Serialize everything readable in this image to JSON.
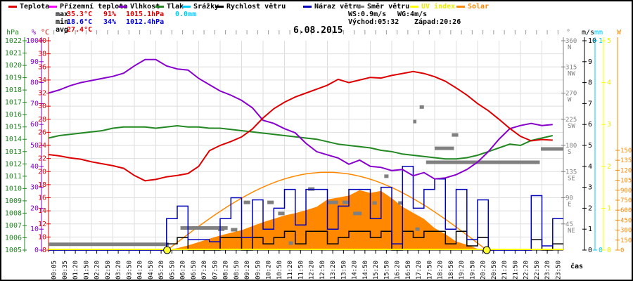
{
  "title": "6.08.2015",
  "legend": {
    "items": [
      {
        "label": "Teplota",
        "color": "#dd0000",
        "label_color": "#000000"
      },
      {
        "label": "Přízemní teplota",
        "color": "#ff00ff",
        "label_color": "#000000"
      },
      {
        "label": "Vlhkost",
        "color": "#8800cc",
        "label_color": "#000000"
      },
      {
        "label": "Tlak",
        "color": "#228822",
        "label_color": "#000000"
      },
      {
        "label": "Srážky",
        "color": "#00ccff",
        "label_color": "#000000"
      },
      {
        "label": "Rychlost větru",
        "color": "#000000",
        "label_color": "#000000"
      },
      {
        "label": "Náraz větru",
        "color": "#0000bb",
        "label_color": "#000000"
      },
      {
        "label": "Směr větru",
        "color": "#808080",
        "label_color": "#000000"
      },
      {
        "label": "UV index",
        "color": "#ffff00",
        "label_color": "#eeee00"
      },
      {
        "label": "Solar",
        "color": "#ff8800",
        "label_color": "#ff8800"
      }
    ]
  },
  "stats": {
    "max_label": "max",
    "max_temp": "35.3°C",
    "max_hum": "91%",
    "max_press": "1015.1hPa",
    "rain": "0.0mm",
    "min_label": "min",
    "min_temp": "18.6°C",
    "min_hum": "34%",
    "min_press": "1012.4hPa",
    "avg_label": "avg",
    "avg_temp": "27.4°C",
    "ws": "WS:0.9m/s",
    "wg": "WG:4m/s",
    "sunrise": "Východ:05:32",
    "sunset": "Západ:20:26"
  },
  "chart_data": {
    "type": "line",
    "title": "6.08.2015",
    "x_unit": "hours",
    "x_start": 0,
    "x_step": 0.5,
    "n_points": 48,
    "time_labels": [
      "00:05",
      "00:35",
      "01:20",
      "01:50",
      "02:20",
      "02:50",
      "03:20",
      "03:50",
      "04:20",
      "04:50",
      "05:20",
      "05:50",
      "06:20",
      "06:50",
      "07:20",
      "07:50",
      "08:20",
      "08:50",
      "09:20",
      "09:50",
      "10:20",
      "10:50",
      "11:20",
      "11:50",
      "12:20",
      "12:50",
      "13:20",
      "13:50",
      "14:20",
      "14:50",
      "15:20",
      "15:50",
      "16:20",
      "16:50",
      "17:20",
      "17:50",
      "18:20",
      "18:50",
      "19:20",
      "19:50",
      "20:20",
      "20:50",
      "21:20",
      "21:50",
      "22:20",
      "22:50",
      "23:20",
      "23:50"
    ],
    "series": [
      {
        "name": "Teplota",
        "unit": "°C",
        "color": "#dd0000",
        "values": [
          22.6,
          22.4,
          22.1,
          21.9,
          21.5,
          21.2,
          20.9,
          20.5,
          19.4,
          18.6,
          18.8,
          19.2,
          19.4,
          19.7,
          20.8,
          23.2,
          24.0,
          24.6,
          25.3,
          26.5,
          28.2,
          29.6,
          30.6,
          31.4,
          32.0,
          32.6,
          33.2,
          34.1,
          33.6,
          34.0,
          34.4,
          34.3,
          34.7,
          35.0,
          35.3,
          35.0,
          34.5,
          33.8,
          32.8,
          31.7,
          30.4,
          29.3,
          28.0,
          26.6,
          25.4,
          24.7,
          24.9,
          24.8
        ]
      },
      {
        "name": "Vlhkost",
        "unit": "%",
        "color": "#8800cc",
        "values": [
          75,
          76.5,
          78.5,
          80,
          81,
          82,
          83,
          84.5,
          88,
          91,
          91,
          88,
          86.5,
          86,
          82,
          79,
          76,
          74,
          71.5,
          68,
          62,
          60.5,
          58,
          56,
          51,
          47,
          45.5,
          44,
          41,
          43,
          40,
          39.5,
          38,
          38.5,
          35.5,
          37,
          34,
          34.5,
          36,
          38.5,
          42,
          47,
          53,
          58,
          59.5,
          60.5,
          59.5,
          60
        ]
      },
      {
        "name": "Tlak",
        "unit": "hPa",
        "color": "#228822",
        "values": [
          1014.1,
          1014.3,
          1014.4,
          1014.5,
          1014.6,
          1014.7,
          1014.9,
          1015.0,
          1015.0,
          1015.0,
          1014.9,
          1015.0,
          1015.1,
          1015.0,
          1015.0,
          1014.9,
          1014.9,
          1014.8,
          1014.7,
          1014.6,
          1014.5,
          1014.4,
          1014.3,
          1014.2,
          1014.1,
          1014.0,
          1013.8,
          1013.6,
          1013.5,
          1013.4,
          1013.3,
          1013.1,
          1013.0,
          1012.8,
          1012.7,
          1012.6,
          1012.5,
          1012.4,
          1012.4,
          1012.5,
          1012.7,
          1013.0,
          1013.3,
          1013.6,
          1013.5,
          1013.9,
          1014.1,
          1014.3
        ]
      },
      {
        "name": "Solar",
        "unit": "W",
        "color": "#ff8800",
        "fill": true,
        "values": [
          0,
          0,
          0,
          0,
          0,
          0,
          0,
          0,
          0,
          0,
          0,
          5,
          30,
          70,
          120,
          170,
          220,
          260,
          300,
          360,
          420,
          470,
          520,
          555,
          600,
          650,
          760,
          790,
          820,
          900,
          860,
          890,
          780,
          650,
          560,
          470,
          330,
          240,
          130,
          80,
          20,
          0,
          0,
          0,
          0,
          0,
          0,
          0
        ]
      },
      {
        "name": "Náraz větru",
        "unit": "m/s",
        "color": "#0000bb",
        "step": true,
        "values": [
          0,
          0,
          0,
          0,
          0,
          0,
          0,
          0,
          0,
          0,
          0,
          1.5,
          2.1,
          0.5,
          0.5,
          0.4,
          1.5,
          2.5,
          0.6,
          2.4,
          1.0,
          2.0,
          2.9,
          1.2,
          2.9,
          2.9,
          1.0,
          2.1,
          2.9,
          2.9,
          1.5,
          3.0,
          0.3,
          4.0,
          2.0,
          2.9,
          3.4,
          1.0,
          2.9,
          0.5,
          2.4,
          0,
          0,
          0,
          0,
          2.6,
          0.2,
          1.5
        ]
      },
      {
        "name": "Rychlost větru",
        "unit": "m/s",
        "color": "#000000",
        "step": true,
        "values": [
          0,
          0,
          0,
          0,
          0,
          0,
          0,
          0,
          0,
          0,
          0,
          0.3,
          0.6,
          0,
          0,
          0,
          0.6,
          0.6,
          0,
          0.6,
          0.3,
          0.6,
          0.9,
          0.3,
          0.9,
          0.9,
          0.3,
          0.6,
          0.9,
          0.9,
          0.6,
          0.9,
          0,
          0.9,
          0.6,
          0.9,
          0.9,
          0.3,
          0.9,
          0.2,
          0.6,
          0,
          0,
          0,
          0,
          0.5,
          0,
          0.3
        ]
      },
      {
        "name": "UV index",
        "unit": "",
        "color": "#ffff00",
        "constant": 0
      }
    ],
    "wind_direction_segments": [
      [
        0.0,
        5.6,
        10
      ],
      [
        6.15,
        8.35,
        38
      ],
      [
        7.9,
        8.2,
        36
      ],
      [
        8.5,
        8.8,
        35
      ],
      [
        9.1,
        9.4,
        82
      ],
      [
        10.2,
        10.5,
        82
      ],
      [
        10.7,
        11.0,
        63
      ],
      [
        11.2,
        11.4,
        12
      ],
      [
        12.1,
        12.4,
        105
      ],
      [
        13.0,
        13.5,
        82
      ],
      [
        13.7,
        14.0,
        82
      ],
      [
        14.2,
        14.6,
        63
      ],
      [
        15.1,
        15.3,
        81
      ],
      [
        15.65,
        15.85,
        127
      ],
      [
        16.3,
        16.5,
        81
      ],
      [
        17.0,
        17.15,
        221
      ],
      [
        17.1,
        17.3,
        36
      ],
      [
        17.3,
        17.5,
        246
      ],
      [
        17.6,
        22.9,
        151
      ],
      [
        18.0,
        18.9,
        175
      ],
      [
        18.8,
        19.1,
        198
      ],
      [
        22.95,
        24.0,
        174
      ]
    ],
    "clear_sky_curve": {
      "start_h": 5.53,
      "end_h": 20.43,
      "peak_w": 1170,
      "color": "#ff8800"
    },
    "sun_markers_h": [
      5.53,
      20.43
    ],
    "axes": {
      "temperature": {
        "label": "°C",
        "color": "#dd0000",
        "min": 8,
        "max": 40,
        "step": 2
      },
      "humidity": {
        "label": "%",
        "color": "#8800cc",
        "min": 0,
        "max": 100,
        "step": 10
      },
      "pressure": {
        "label": "hPa",
        "color": "#228822",
        "min": 1005,
        "max": 1022,
        "step": 1
      },
      "direction": {
        "label": "°",
        "color": "#808080",
        "min": 0,
        "max": 360,
        "step": 45,
        "compass": {
          "360": "N",
          "315": "NW",
          "270": "W",
          "225": "SW",
          "180": "S",
          "135": "SE",
          "90": "E",
          "45": "NE"
        }
      },
      "wind": {
        "label": "m/s",
        "color": "#000000",
        "min": 0,
        "max": 10,
        "step": 1
      },
      "rain": {
        "label": "mm",
        "color": "#00ccff",
        "min": 0,
        "max": 1,
        "step": 1
      },
      "uv": {
        "label": "",
        "color": "#eeee00",
        "min": 0,
        "max": 5,
        "step": 1
      },
      "solar": {
        "label": "W",
        "color": "#ff8800",
        "min": 0,
        "max": 1500,
        "step": 150,
        "full_scale": 3147
      },
      "time_label": "čas"
    },
    "grid": true,
    "legend_position": "top"
  }
}
